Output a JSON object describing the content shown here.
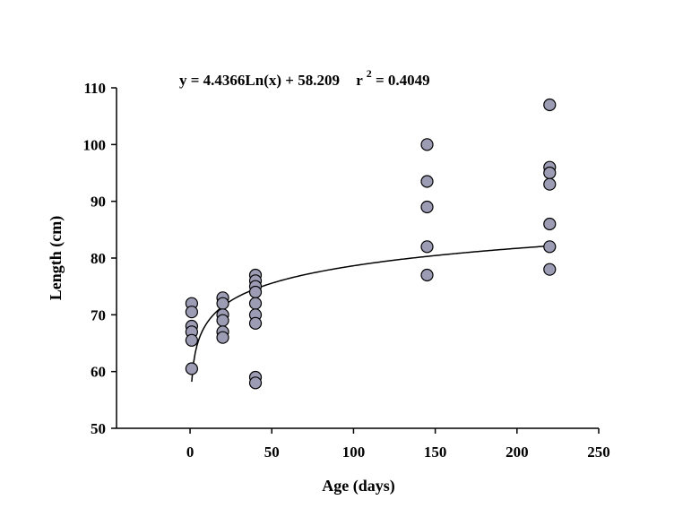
{
  "chart_data": {
    "type": "scatter",
    "title": "",
    "annotation": {
      "equation": "y = 4.4366Ln(x) + 58.209",
      "r_prefix": "r",
      "r_exp": "2",
      "r_suffix": " = 0.4049"
    },
    "xlabel": "Age (days)",
    "ylabel": "Length (cm)",
    "xlim": [
      -45,
      250
    ],
    "ylim": [
      50,
      110
    ],
    "xticks": [
      0,
      50,
      100,
      150,
      200,
      250
    ],
    "yticks": [
      50,
      60,
      70,
      80,
      90,
      100,
      110
    ],
    "grid": false,
    "legend": "none",
    "marker_color": "#9c9cb4",
    "marker_edge": "#000000",
    "series": [
      {
        "points": [
          [
            1,
            72
          ],
          [
            1,
            70.5
          ],
          [
            1,
            68
          ],
          [
            1,
            67
          ],
          [
            1,
            65.5
          ],
          [
            1,
            60.5
          ],
          [
            20,
            73
          ],
          [
            20,
            72
          ],
          [
            20,
            70
          ],
          [
            20,
            69
          ],
          [
            20,
            67
          ],
          [
            20,
            66
          ],
          [
            40,
            77
          ],
          [
            40,
            76
          ],
          [
            40,
            75
          ],
          [
            40,
            74
          ],
          [
            40,
            72
          ],
          [
            40,
            70
          ],
          [
            40,
            68.5
          ],
          [
            40,
            59
          ],
          [
            40,
            58
          ],
          [
            145,
            100
          ],
          [
            145,
            93.5
          ],
          [
            145,
            89
          ],
          [
            145,
            82
          ],
          [
            145,
            77
          ],
          [
            220,
            107
          ],
          [
            220,
            96
          ],
          [
            220,
            95
          ],
          [
            220,
            93
          ],
          [
            220,
            86
          ],
          [
            220,
            82
          ],
          [
            220,
            78
          ]
        ]
      }
    ],
    "trendline": {
      "type": "logarithmic",
      "a": 4.4366,
      "b": 58.209,
      "x_range": [
        1,
        220
      ]
    }
  }
}
